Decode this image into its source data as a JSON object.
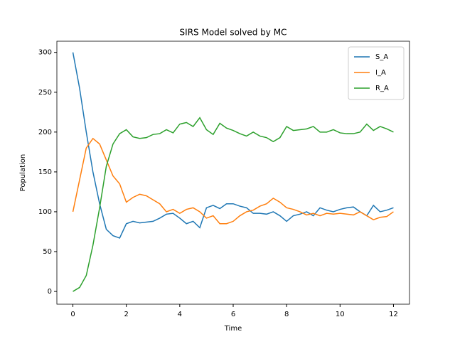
{
  "chart_data": {
    "type": "line",
    "title": "SIRS Model solved by MC",
    "x_label": "Time",
    "y_label": "Population",
    "x": [
      0,
      0.25,
      0.5,
      0.75,
      1,
      1.25,
      1.5,
      1.75,
      2,
      2.25,
      2.5,
      2.75,
      3,
      3.25,
      3.5,
      3.75,
      4,
      4.25,
      4.5,
      4.75,
      5,
      5.25,
      5.5,
      5.75,
      6,
      6.25,
      6.5,
      6.75,
      7,
      7.25,
      7.5,
      7.75,
      8,
      8.25,
      8.5,
      8.75,
      9,
      9.25,
      9.5,
      9.75,
      10,
      10.25,
      10.5,
      10.75,
      11,
      11.25,
      11.5,
      11.75,
      12
    ],
    "series": [
      {
        "name": "S_A",
        "color": "#1f77b4",
        "values": [
          300,
          255,
          200,
          150,
          110,
          78,
          70,
          67,
          85,
          88,
          86,
          87,
          88,
          92,
          97,
          98,
          92,
          85,
          88,
          80,
          105,
          108,
          104,
          110,
          110,
          107,
          105,
          98,
          98,
          97,
          100,
          95,
          88,
          95,
          97,
          100,
          95,
          105,
          102,
          100,
          103,
          105,
          106,
          100,
          95,
          108,
          100,
          102,
          105
        ]
      },
      {
        "name": "I_A",
        "color": "#ff7f0e",
        "values": [
          100,
          140,
          180,
          192,
          185,
          165,
          145,
          135,
          112,
          118,
          122,
          120,
          115,
          110,
          100,
          103,
          98,
          103,
          105,
          100,
          92,
          95,
          85,
          85,
          88,
          95,
          100,
          102,
          107,
          110,
          117,
          112,
          105,
          103,
          100,
          96,
          98,
          95,
          98,
          97,
          98,
          97,
          96,
          100,
          95,
          90,
          93,
          94,
          100
        ]
      },
      {
        "name": "R_A",
        "color": "#2ca02c",
        "values": [
          0,
          5,
          20,
          58,
          105,
          157,
          185,
          198,
          203,
          194,
          192,
          193,
          197,
          198,
          203,
          199,
          210,
          212,
          207,
          218,
          203,
          197,
          211,
          205,
          202,
          198,
          195,
          200,
          195,
          193,
          188,
          193,
          207,
          202,
          203,
          204,
          207,
          200,
          200,
          203,
          199,
          198,
          198,
          200,
          210,
          202,
          207,
          204,
          200
        ]
      }
    ],
    "xlim": [
      -0.6,
      12.6
    ],
    "ylim": [
      -16,
      314
    ],
    "xticks": [
      0,
      2,
      4,
      6,
      8,
      10,
      12
    ],
    "yticks": [
      0,
      50,
      100,
      150,
      200,
      250,
      300
    ],
    "legend": "upper right"
  }
}
